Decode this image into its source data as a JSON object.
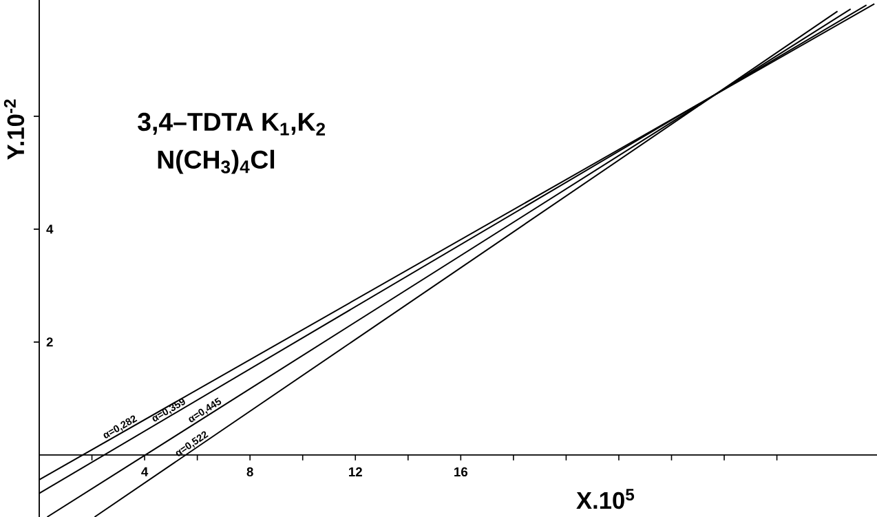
{
  "chart_data": {
    "type": "line",
    "xlabel": "X.10$^{5}$",
    "ylabel": "Y.10$^{-2}$",
    "annotations": [
      "3,4–TDTA K$_{1}$,K$_{2}$",
      "N(CH$_{3}$)$_{4}$Cl"
    ],
    "xlim": [
      0,
      31.8
    ],
    "ylim": [
      -1.1,
      8.06
    ],
    "xticks": [
      {
        "value": 2,
        "label": null
      },
      4,
      {
        "value": 6,
        "label": null
      },
      8,
      {
        "value": 10,
        "label": null
      },
      12,
      {
        "value": 14,
        "label": null
      },
      16,
      {
        "value": 18,
        "label": null
      },
      {
        "value": 20,
        "label": null
      },
      {
        "value": 22,
        "label": null
      },
      {
        "value": 24,
        "label": null
      },
      {
        "value": 26,
        "label": null
      },
      {
        "value": 28,
        "label": null
      }
    ],
    "yticks": [
      2,
      4,
      {
        "value": 6,
        "label": null
      }
    ],
    "series": [
      {
        "name": "α=0,282",
        "color": "#000000",
        "x": [
          0,
          31.7
        ],
        "values": [
          -0.44,
          7.99
        ]
      },
      {
        "name": "α=0,359",
        "color": "#000000",
        "x": [
          0,
          31.4
        ],
        "values": [
          -0.68,
          7.97
        ]
      },
      {
        "name": "α=0,445",
        "color": "#000000",
        "x": [
          0.3,
          30.8
        ],
        "values": [
          -1.1,
          7.9
        ]
      },
      {
        "name": "α=0,522",
        "color": "#000000",
        "x": [
          2.1,
          30.3
        ],
        "values": [
          -1.1,
          7.86
        ]
      }
    ]
  }
}
